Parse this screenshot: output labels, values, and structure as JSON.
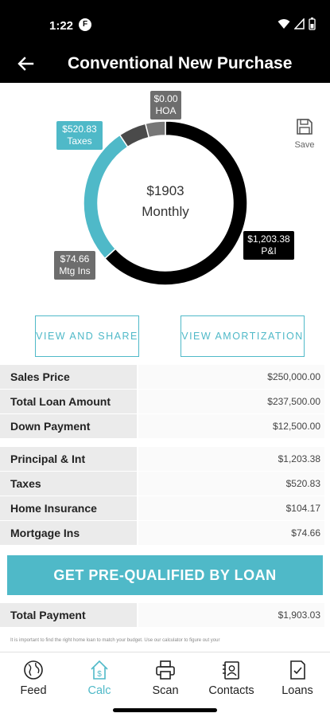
{
  "status_bar": {
    "time": "1:22",
    "app_icon_letter": "F"
  },
  "header": {
    "title": "Conventional New Purchase"
  },
  "chart_data": {
    "type": "pie",
    "variant": "donut",
    "center": {
      "amount": "$1903",
      "label": "Monthly"
    },
    "slices": [
      {
        "label": "P&I",
        "value_text": "$1,203.38",
        "value": 1203.38,
        "color": "#000000"
      },
      {
        "label": "Taxes",
        "value_text": "$520.83",
        "value": 520.83,
        "color": "#4fb9c8"
      },
      {
        "label": "Home Insurance",
        "value": 104.17,
        "color": "#4a4a4a"
      },
      {
        "label": "Mtg Ins",
        "value_text": "$74.66",
        "value": 74.66,
        "color": "#777777"
      },
      {
        "label": "HOA",
        "value_text": "$0.00",
        "value": 0.0,
        "color": "#6d6d6d"
      }
    ]
  },
  "save": {
    "label": "Save"
  },
  "actions": {
    "view_share": "VIEW AND SHARE",
    "view_amortization": "VIEW AMORTIZATION"
  },
  "loan_summary": [
    {
      "label": "Sales Price",
      "value": "$250,000.00"
    },
    {
      "label": "Total Loan Amount",
      "value": "$237,500.00"
    },
    {
      "label": "Down Payment",
      "value": "$12,500.00"
    }
  ],
  "payment_breakdown": [
    {
      "label": "Principal & Int",
      "value": "$1,203.38"
    },
    {
      "label": "Taxes",
      "value": "$520.83"
    },
    {
      "label": "Home Insurance",
      "value": "$104.17"
    },
    {
      "label": "Mortgage Ins",
      "value": "$74.66"
    }
  ],
  "cta": {
    "label": "GET PRE-QUALIFIED BY LOAN"
  },
  "total": {
    "label": "Total Payment",
    "value": "$1,903.03"
  },
  "disclaimer": "It is important to find the right home loan to match your budget. Use our calculator to figure out your",
  "nav": [
    {
      "label": "Feed",
      "icon": "globe-icon"
    },
    {
      "label": "Calc",
      "icon": "house-dollar-icon",
      "active": true
    },
    {
      "label": "Scan",
      "icon": "printer-icon"
    },
    {
      "label": "Contacts",
      "icon": "contacts-icon"
    },
    {
      "label": "Loans",
      "icon": "document-check-icon"
    }
  ]
}
